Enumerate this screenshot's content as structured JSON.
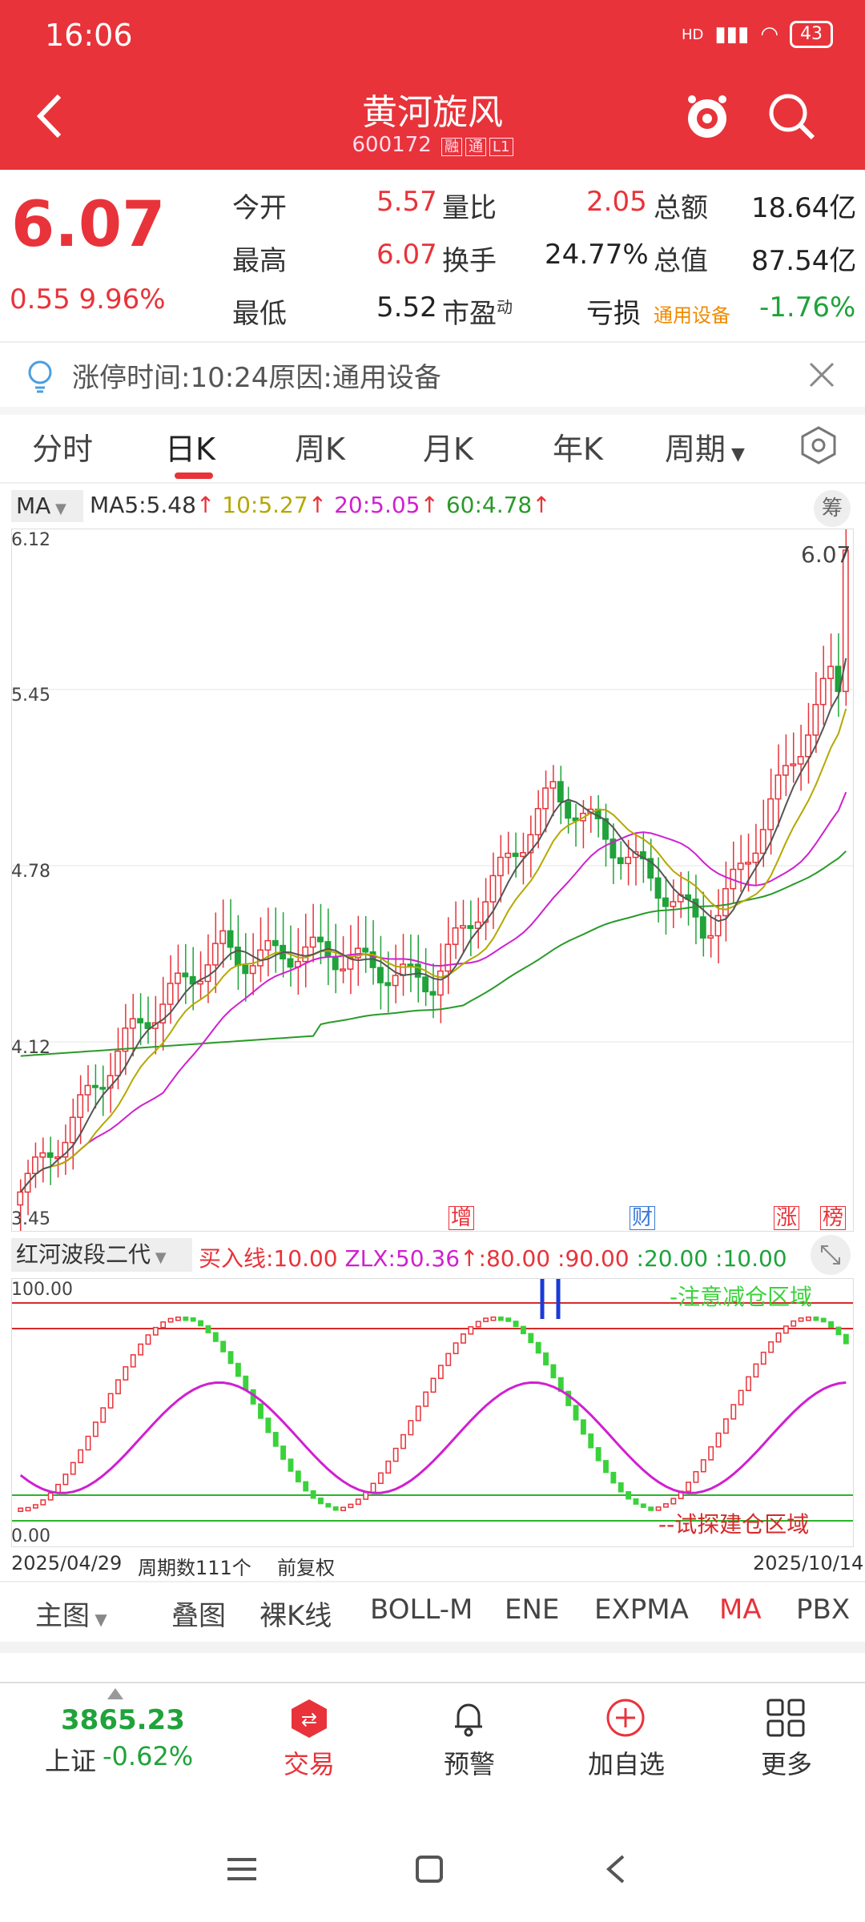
{
  "status": {
    "time": "16:06",
    "signal": "HD",
    "battery": "43"
  },
  "header": {
    "title": "黄河旋风",
    "code": "600172",
    "tag1": "融",
    "tag2": "通",
    "tag3": "L1"
  },
  "quote": {
    "price": "6.07",
    "change": "0.55",
    "change_pct": "9.96%",
    "open_label": "今开",
    "open": "5.57",
    "high_label": "最高",
    "high": "6.07",
    "low_label": "最低",
    "low": "5.52",
    "vr_label": "量比",
    "vr": "2.05",
    "turnover_label": "换手",
    "turnover": "24.77%",
    "pe_label": "市盈",
    "pe_sup": "动",
    "pe": "亏损",
    "amount_label": "总额",
    "amount": "18.64亿",
    "mcap_label": "总值",
    "mcap": "87.54亿",
    "sector": "通用设备",
    "sector_pct": "-1.76%"
  },
  "notice": {
    "text": "涨停时间:10:24原因:通用设备"
  },
  "tabs": [
    "分时",
    "日K",
    "周K",
    "月K",
    "年K",
    "周期"
  ],
  "ma": {
    "selector": "MA",
    "ma5": "MA5:5.48",
    "ma10": "10:5.27",
    "ma20": "20:5.05",
    "ma60": "60:4.78",
    "chou": "筹",
    "colors": {
      "ma5": "#333333",
      "ma10": "#b5a800",
      "ma20": "#d020d0",
      "ma60": "#2a9a2a"
    }
  },
  "axis": {
    "y1": "6.12",
    "y2": "5.45",
    "y3": "4.78",
    "y4": "4.12",
    "y5": "3.45",
    "last": "6.07"
  },
  "markers": {
    "m1": "增",
    "m2": "财",
    "m3": "涨",
    "m4": "榜"
  },
  "indicator": {
    "selector": "红河波段二代",
    "buy": "买入线:10.00",
    "zlx": "ZLX:50.36",
    "l80": ":80.00",
    "l90": ":90.00",
    "l20": ":20.00",
    "l10": ":10.00",
    "top": "100.00",
    "bottom": "0.00",
    "zone_high": "-注意减仓区域",
    "zone_low": "--试探建仓区域"
  },
  "footer": {
    "start": "2025/04/29",
    "count": "周期数111个",
    "adj": "前复权",
    "end": "2025/10/14"
  },
  "indicator_buttons": [
    "主图",
    "叠图",
    "裸K线",
    "BOLL-M",
    "ENE",
    "EXPMA",
    "MA",
    "PBX"
  ],
  "bottom_nav": {
    "index_value": "3865.23",
    "index_name": "上证",
    "index_pct": "-0.62%",
    "trade": "交易",
    "alert": "预警",
    "add": "加自选",
    "more": "更多"
  }
}
